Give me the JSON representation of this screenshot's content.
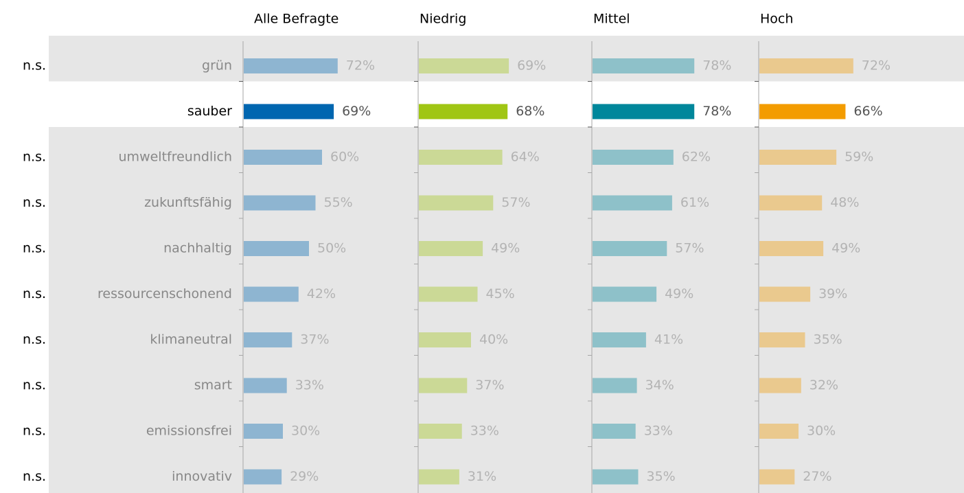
{
  "chart_data": {
    "type": "bar",
    "categories": [
      "grün",
      "sauber",
      "umweltfreundlich",
      "zukunftsfähig",
      "nachhaltig",
      "ressourcenschonend",
      "klimaneutral",
      "smart",
      "emissionsfrei",
      "innovativ"
    ],
    "annotations": [
      "n.s.",
      null,
      "n.s.",
      "n.s.",
      "n.s.",
      "n.s.",
      "n.s.",
      "n.s.",
      "n.s.",
      "n.s."
    ],
    "highlight": 1,
    "xlim": [
      0,
      100
    ],
    "series": [
      {
        "name": "Alle Befragte",
        "color": "#0066b0",
        "values": [
          72,
          69,
          60,
          55,
          50,
          42,
          37,
          33,
          30,
          29
        ],
        "value_labels": [
          "72%",
          "69%",
          "60%",
          "55%",
          "50%",
          "42%",
          "37%",
          "33%",
          "30%",
          "29%"
        ]
      },
      {
        "name": "Niedrig",
        "color": "#a0c614",
        "values": [
          69,
          68,
          64,
          57,
          49,
          45,
          40,
          37,
          33,
          31
        ],
        "value_labels": [
          "69%",
          "68%",
          "64%",
          "57%",
          "49%",
          "45%",
          "40%",
          "37%",
          "33%",
          "31%"
        ]
      },
      {
        "name": "Mittel",
        "color": "#00879b",
        "values": [
          78,
          78,
          62,
          61,
          57,
          49,
          41,
          34,
          33,
          35
        ],
        "value_labels": [
          "78%",
          "78%",
          "62%",
          "61%",
          "57%",
          "49%",
          "41%",
          "34%",
          "33%",
          "35%"
        ]
      },
      {
        "name": "Hoch",
        "color": "#f39c00",
        "values": [
          72,
          66,
          59,
          48,
          49,
          39,
          35,
          32,
          30,
          27
        ],
        "value_labels": [
          "72%",
          "66%",
          "59%",
          "48%",
          "49%",
          "39%",
          "35%",
          "32%",
          "30%",
          "27%"
        ]
      }
    ]
  }
}
